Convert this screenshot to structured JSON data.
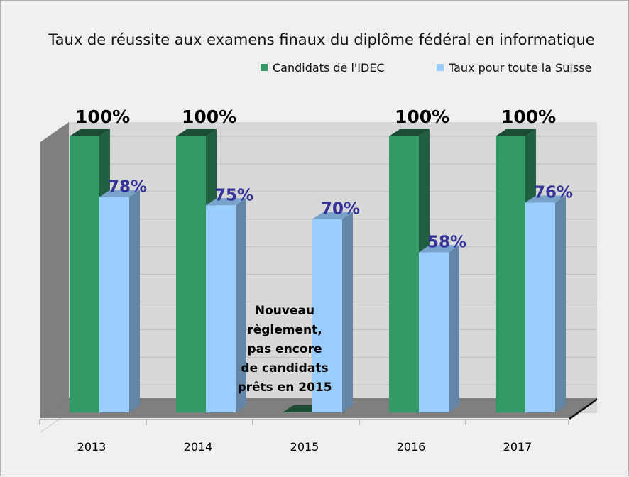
{
  "chart_data": {
    "type": "bar",
    "title": "Taux de réussite aux examens finaux du diplôme fédéral en informatique",
    "categories": [
      "2013",
      "2014",
      "2015",
      "2016",
      "2017"
    ],
    "ylim": [
      0,
      100
    ],
    "grid": true,
    "legend_position": "top-right",
    "series": [
      {
        "name": "Candidats de l'IDEC",
        "color": "#339966",
        "values": [
          100,
          100,
          0,
          100,
          100
        ],
        "labels": [
          "100%",
          "100%",
          "",
          "100%",
          "100%"
        ]
      },
      {
        "name": "Taux pour toute la Suisse",
        "color": "#99ccff",
        "values": [
          78,
          75,
          70,
          58,
          76
        ],
        "labels": [
          "78%",
          "75%",
          "70%",
          "58%",
          "76%"
        ]
      }
    ],
    "annotation": {
      "category": "2015",
      "lines": [
        "Nouveau",
        "règlement,",
        "pas encore",
        "de candidats",
        "prêts en 2015"
      ]
    }
  }
}
